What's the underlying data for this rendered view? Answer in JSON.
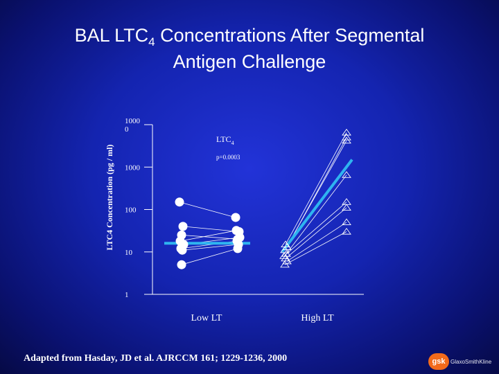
{
  "title": {
    "line1_pre": "BAL  LTC",
    "line1_sub": "4",
    "line1_post": " Concentrations After Segmental",
    "line2": "Antigen Challenge"
  },
  "citation": "Adapted from Hasday, JD  et al.  AJRCCM  161; 1229-1236, 2000",
  "logo": {
    "badge": "gsk",
    "word": "GlaxoSmithKline"
  },
  "chart_data": {
    "type": "scatter",
    "scale": "log",
    "ylim": [
      1,
      10000
    ],
    "ylabel": "LTC4  Concentration (pg / ml)",
    "yticks": [
      {
        "value": 1,
        "label": "1"
      },
      {
        "value": 10,
        "label": "10"
      },
      {
        "value": 100,
        "label": "100"
      },
      {
        "value": 1000,
        "label": "1000"
      },
      {
        "value": 10000,
        "label": "1000\n0"
      }
    ],
    "legend_label": "LTC",
    "legend_sub": "4",
    "p_value": "p=0.0003",
    "categories": [
      "Low LT",
      "High LT"
    ],
    "groups": [
      {
        "name": "Low LT",
        "marker": "circle",
        "pairs": [
          [
            150,
            65
          ],
          [
            40,
            30
          ],
          [
            25,
            20
          ],
          [
            18,
            32
          ],
          [
            15,
            22
          ],
          [
            12,
            18
          ],
          [
            11,
            15
          ],
          [
            5,
            12
          ]
        ],
        "mean_line": [
          16,
          16
        ]
      },
      {
        "name": "High LT",
        "marker": "triangle",
        "pairs": [
          [
            15,
            6500
          ],
          [
            13,
            5000
          ],
          [
            11,
            4200
          ],
          [
            9,
            650
          ],
          [
            8,
            150
          ],
          [
            7,
            110
          ],
          [
            6,
            50
          ],
          [
            5,
            30
          ]
        ],
        "mean_line": [
          10,
          1500
        ]
      }
    ],
    "grid": false
  }
}
